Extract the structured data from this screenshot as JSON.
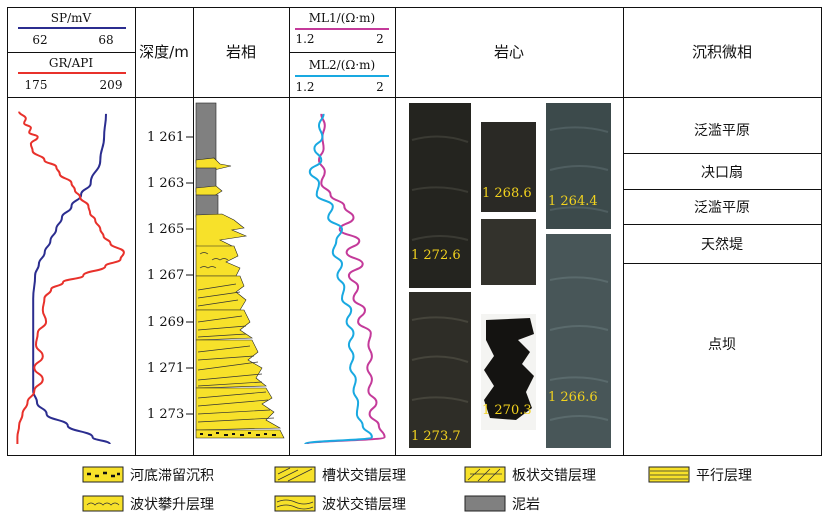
{
  "headers": {
    "sp_label": "SP/mV",
    "sp_min": "62",
    "sp_max": "68",
    "gr_label": "GR/API",
    "gr_min": "175",
    "gr_max": "209",
    "depth": "深度/m",
    "lithofacies": "岩相",
    "ml1_label": "ML1/(Ω·m)",
    "ml1_min": "1.2",
    "ml1_max": "2",
    "ml2_label": "ML2/(Ω·m)",
    "ml2_min": "1.2",
    "ml2_max": "2",
    "core": "岩心",
    "facies": "沉积微相"
  },
  "colors": {
    "sp": "#2b2d8f",
    "gr": "#e8312b",
    "ml1": "#c43a9a",
    "ml2": "#19a9e1",
    "sand": "#f7e12a",
    "mud": "#808080"
  },
  "depth_ticks": [
    "1 261",
    "1 263",
    "1 265",
    "1 267",
    "1 269",
    "1 271",
    "1 273"
  ],
  "core_labels": [
    "1 272.6",
    "1 273.7",
    "1 268.6",
    "1 270.3",
    "1 264.4",
    "1 266.6"
  ],
  "facies": [
    "泛滥平原",
    "决口扇",
    "泛滥平原",
    "天然堤",
    "点坝"
  ],
  "legend": [
    "河底滞留沉积",
    "槽状交错层理",
    "板状交错层理",
    "平行层理",
    "波状攀升层理",
    "波状交错层理",
    "泥岩"
  ],
  "chart_data": {
    "type": "line",
    "depth_range": [
      1259.6,
      1274.6
    ],
    "x_ranges": {
      "SP": [
        62,
        68
      ],
      "GR": [
        175,
        209
      ],
      "ML": [
        1.2,
        2.0
      ]
    },
    "series": [
      {
        "name": "SP/mV",
        "depth": [
          1260.0,
          1261.0,
          1262.0,
          1263.0,
          1263.5,
          1264.0,
          1264.5,
          1265.0,
          1265.5,
          1266.0,
          1266.5,
          1267.0,
          1268.0,
          1269.0,
          1270.0,
          1271.0,
          1272.0,
          1272.5,
          1273.0,
          1273.5,
          1274.0,
          1274.3
        ],
        "values": [
          66.8,
          66.7,
          66.5,
          66.0,
          65.5,
          65.0,
          64.5,
          64.2,
          63.9,
          63.6,
          63.3,
          63.1,
          63.0,
          63.0,
          63.0,
          63.0,
          63.0,
          63.2,
          63.7,
          64.8,
          66.1,
          67.0
        ]
      },
      {
        "name": "GR/API",
        "depth": [
          1259.9,
          1260.2,
          1260.4,
          1260.6,
          1260.8,
          1261.0,
          1261.3,
          1261.6,
          1262.0,
          1262.3,
          1262.6,
          1263.0,
          1263.3,
          1263.6,
          1264.0,
          1264.3,
          1264.6,
          1265.0,
          1265.3,
          1265.6,
          1266.0,
          1266.3,
          1266.6,
          1267.0,
          1267.3,
          1267.6,
          1268.0,
          1268.5,
          1269.0,
          1269.5,
          1270.0,
          1270.5,
          1271.0,
          1271.5,
          1272.0,
          1272.5,
          1273.0,
          1273.5,
          1274.0,
          1274.3
        ],
        "values": [
          176.5,
          178.5,
          178.0,
          180.0,
          179.5,
          182.0,
          180.0,
          180.5,
          184.0,
          187.5,
          188.5,
          192.0,
          193.0,
          194.5,
          197.0,
          197.5,
          199.0,
          200.5,
          201.5,
          203.5,
          207.5,
          206.5,
          202.0,
          195.5,
          189.5,
          186.0,
          184.0,
          183.5,
          184.5,
          182.0,
          181.5,
          183.5,
          181.0,
          183.5,
          181.0,
          179.0,
          177.5,
          176.5,
          176.0,
          176.0
        ]
      },
      {
        "name": "ML1/(Ω·m)",
        "depth": [
          1260.0,
          1260.5,
          1261.0,
          1261.5,
          1262.0,
          1262.5,
          1263.0,
          1263.5,
          1264.0,
          1264.5,
          1265.0,
          1265.5,
          1266.0,
          1266.5,
          1267.0,
          1267.5,
          1268.0,
          1268.5,
          1269.0,
          1269.5,
          1270.0,
          1270.5,
          1271.0,
          1271.5,
          1272.0,
          1272.5,
          1273.0,
          1273.5,
          1274.0,
          1274.3
        ],
        "values": [
          1.42,
          1.45,
          1.43,
          1.44,
          1.4,
          1.45,
          1.42,
          1.5,
          1.62,
          1.7,
          1.58,
          1.75,
          1.64,
          1.78,
          1.66,
          1.74,
          1.7,
          1.8,
          1.74,
          1.85,
          1.83,
          1.86,
          1.82,
          1.86,
          1.83,
          1.9,
          1.84,
          1.92,
          1.97,
          1.3
        ]
      },
      {
        "name": "ML2/(Ω·m)",
        "depth": [
          1260.0,
          1260.5,
          1261.0,
          1261.5,
          1262.0,
          1262.5,
          1263.0,
          1263.5,
          1264.0,
          1264.5,
          1265.0,
          1265.5,
          1266.0,
          1266.5,
          1267.0,
          1267.5,
          1268.0,
          1268.5,
          1269.0,
          1269.5,
          1270.0,
          1270.5,
          1271.0,
          1271.5,
          1272.0,
          1272.5,
          1273.0,
          1273.5,
          1274.0,
          1274.3
        ],
        "values": [
          1.44,
          1.4,
          1.43,
          1.36,
          1.42,
          1.32,
          1.4,
          1.38,
          1.52,
          1.48,
          1.6,
          1.55,
          1.52,
          1.6,
          1.56,
          1.62,
          1.6,
          1.68,
          1.64,
          1.7,
          1.66,
          1.7,
          1.67,
          1.72,
          1.7,
          1.74,
          1.73,
          1.78,
          1.86,
          1.28
        ]
      }
    ]
  }
}
